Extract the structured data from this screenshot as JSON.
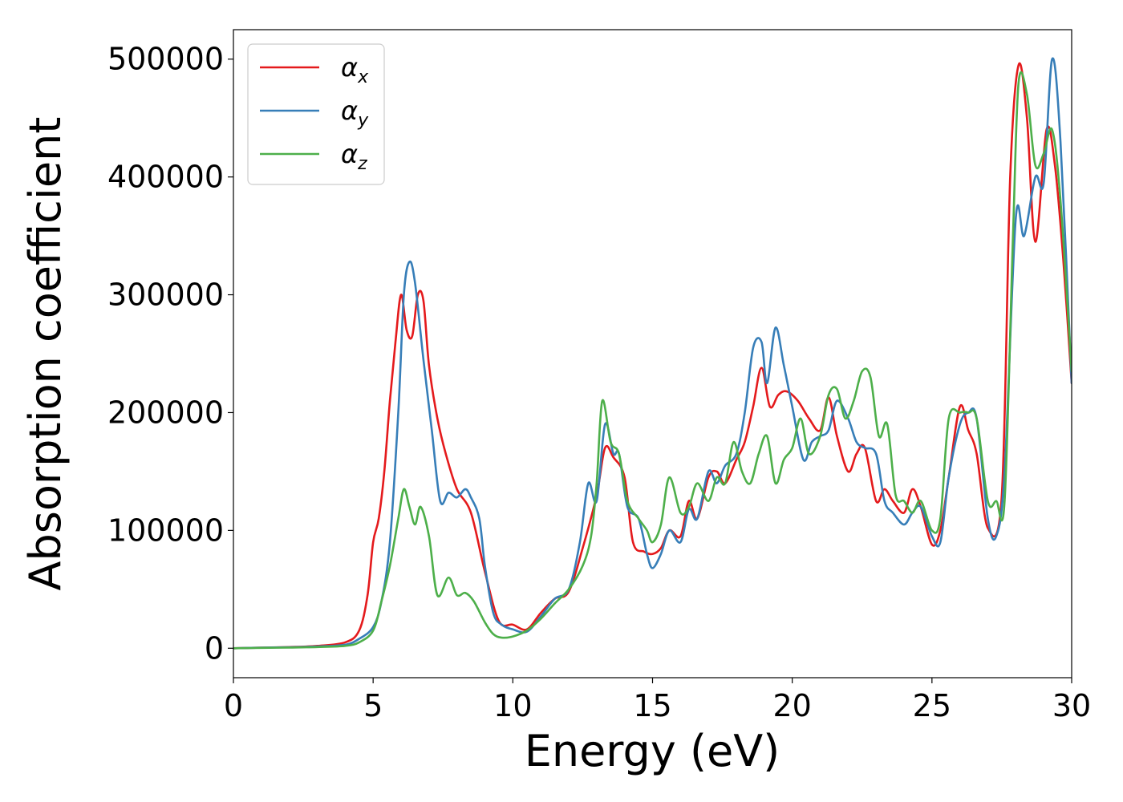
{
  "chart_data": {
    "type": "line",
    "xlabel": "Energy (eV)",
    "ylabel": "Absorption coefficient",
    "xlim": [
      0,
      30
    ],
    "ylim": [
      -25000,
      525000
    ],
    "xticks": [
      0,
      5,
      10,
      15,
      20,
      25,
      30
    ],
    "yticks": [
      0,
      100000,
      200000,
      300000,
      400000,
      500000
    ],
    "grid": false,
    "legend_position": "top-left",
    "series": [
      {
        "name": "α",
        "subscript": "x",
        "color": "#e41a1c",
        "x": [
          0,
          1,
          2,
          3,
          4,
          4.5,
          4.8,
          5.0,
          5.2,
          5.4,
          5.6,
          5.8,
          6.0,
          6.2,
          6.4,
          6.6,
          6.8,
          7.0,
          7.3,
          7.6,
          8.0,
          8.5,
          9.0,
          9.5,
          10.0,
          10.5,
          11.0,
          11.5,
          12.0,
          12.5,
          13.0,
          13.3,
          13.6,
          14.0,
          14.3,
          14.7,
          15.0,
          15.3,
          15.6,
          16.0,
          16.3,
          16.6,
          17.0,
          17.3,
          17.6,
          18.0,
          18.3,
          18.6,
          18.9,
          19.2,
          19.5,
          19.8,
          20.2,
          20.6,
          21.0,
          21.3,
          21.6,
          22.0,
          22.3,
          22.6,
          23.0,
          23.3,
          23.6,
          24.0,
          24.3,
          24.6,
          25.0,
          25.3,
          25.6,
          26.0,
          26.3,
          26.6,
          27.0,
          27.5,
          27.8,
          28.1,
          28.4,
          28.7,
          29.1,
          29.4,
          29.7,
          30.0
        ],
        "values": [
          0,
          500,
          1000,
          2000,
          5000,
          15000,
          45000,
          90000,
          110000,
          150000,
          210000,
          260000,
          300000,
          270000,
          265000,
          300000,
          295000,
          240000,
          195000,
          165000,
          135000,
          115000,
          65000,
          23000,
          20000,
          16000,
          30000,
          42000,
          48000,
          85000,
          130000,
          170000,
          162000,
          145000,
          90000,
          82000,
          80000,
          85000,
          100000,
          95000,
          125000,
          110000,
          145000,
          150000,
          140000,
          160000,
          175000,
          205000,
          238000,
          205000,
          215000,
          218000,
          210000,
          195000,
          185000,
          213000,
          180000,
          150000,
          165000,
          170000,
          125000,
          135000,
          125000,
          115000,
          135000,
          120000,
          88000,
          100000,
          145000,
          205000,
          185000,
          165000,
          102000,
          130000,
          400000,
          495000,
          450000,
          345000,
          440000,
          410000,
          330000,
          225000
        ]
      },
      {
        "name": "α",
        "subscript": "y",
        "color": "#377eb8",
        "x": [
          0,
          1,
          2,
          3,
          4,
          4.5,
          5.0,
          5.3,
          5.6,
          5.9,
          6.1,
          6.3,
          6.5,
          6.8,
          7.1,
          7.4,
          7.7,
          8.0,
          8.3,
          8.5,
          8.8,
          9.0,
          9.3,
          9.6,
          10.0,
          10.5,
          11.0,
          11.5,
          12.0,
          12.4,
          12.7,
          13.0,
          13.3,
          13.6,
          13.8,
          14.1,
          14.5,
          14.8,
          15.0,
          15.3,
          15.6,
          16.0,
          16.3,
          16.6,
          17.0,
          17.3,
          17.6,
          18.0,
          18.3,
          18.6,
          18.9,
          19.1,
          19.4,
          19.7,
          20.0,
          20.4,
          20.7,
          21.0,
          21.3,
          21.6,
          22.0,
          22.3,
          22.6,
          23.0,
          23.3,
          23.6,
          24.0,
          24.3,
          24.6,
          25.0,
          25.3,
          25.6,
          26.0,
          26.3,
          26.6,
          27.0,
          27.3,
          27.6,
          28.0,
          28.3,
          28.7,
          29.0,
          29.3,
          29.6,
          30.0
        ],
        "values": [
          0,
          500,
          800,
          1500,
          3000,
          8000,
          18000,
          40000,
          90000,
          200000,
          300000,
          328000,
          310000,
          245000,
          185000,
          125000,
          132000,
          128000,
          135000,
          128000,
          110000,
          70000,
          30000,
          20000,
          16000,
          14000,
          27000,
          42000,
          50000,
          90000,
          140000,
          125000,
          190000,
          165000,
          165000,
          120000,
          110000,
          80000,
          68000,
          80000,
          100000,
          90000,
          118000,
          110000,
          150000,
          140000,
          155000,
          165000,
          200000,
          255000,
          260000,
          225000,
          272000,
          240000,
          205000,
          160000,
          175000,
          180000,
          185000,
          210000,
          195000,
          175000,
          170000,
          165000,
          125000,
          115000,
          105000,
          115000,
          120000,
          95000,
          90000,
          145000,
          190000,
          200000,
          195000,
          110000,
          95000,
          150000,
          365000,
          350000,
          400000,
          395000,
          500000,
          430000,
          225000
        ]
      },
      {
        "name": "α",
        "subscript": "z",
        "color": "#4daf4a",
        "x": [
          0,
          1,
          2,
          3,
          4,
          4.5,
          5.0,
          5.3,
          5.6,
          5.9,
          6.1,
          6.3,
          6.5,
          6.7,
          7.0,
          7.3,
          7.7,
          8.0,
          8.3,
          8.6,
          9.0,
          9.3,
          9.6,
          10.0,
          10.5,
          11.0,
          11.5,
          12.0,
          12.5,
          12.8,
          13.0,
          13.2,
          13.5,
          13.8,
          14.1,
          14.5,
          14.8,
          15.0,
          15.3,
          15.6,
          16.0,
          16.3,
          16.6,
          17.0,
          17.3,
          17.6,
          17.9,
          18.2,
          18.5,
          18.8,
          19.1,
          19.4,
          19.7,
          20.0,
          20.3,
          20.6,
          21.0,
          21.3,
          21.6,
          21.9,
          22.2,
          22.5,
          22.8,
          23.1,
          23.4,
          23.7,
          24.0,
          24.3,
          24.6,
          25.0,
          25.3,
          25.6,
          26.0,
          26.3,
          26.6,
          27.0,
          27.3,
          27.6,
          27.9,
          28.1,
          28.4,
          28.7,
          29.0,
          29.3,
          29.6,
          30.0
        ],
        "values": [
          0,
          300,
          600,
          1000,
          2000,
          5000,
          15000,
          40000,
          70000,
          110000,
          135000,
          120000,
          105000,
          120000,
          95000,
          45000,
          60000,
          45000,
          47000,
          40000,
          22000,
          12000,
          9000,
          10000,
          15000,
          25000,
          38000,
          50000,
          70000,
          95000,
          140000,
          210000,
          175000,
          165000,
          125000,
          110000,
          100000,
          90000,
          105000,
          145000,
          115000,
          120000,
          140000,
          125000,
          145000,
          140000,
          175000,
          150000,
          140000,
          165000,
          180000,
          140000,
          160000,
          170000,
          195000,
          165000,
          180000,
          215000,
          220000,
          195000,
          210000,
          235000,
          230000,
          180000,
          190000,
          130000,
          125000,
          115000,
          125000,
          100000,
          110000,
          195000,
          200000,
          200000,
          195000,
          125000,
          125000,
          125000,
          350000,
          480000,
          470000,
          410000,
          420000,
          440000,
          380000,
          235000
        ]
      }
    ]
  }
}
